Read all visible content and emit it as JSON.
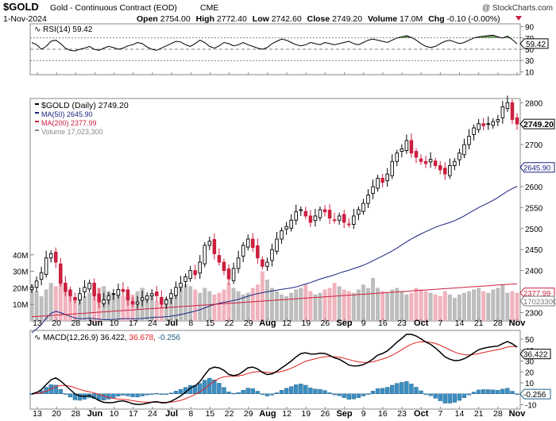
{
  "header": {
    "symbol": "$GOLD",
    "name": "Gold - Continuous Contract (EOD)",
    "exchange": "CME",
    "watermark": "@ StockCharts.com",
    "date": "1-Nov-2024",
    "open_label": "Open",
    "open": "2754.00",
    "high_label": "High",
    "high": "2772.40",
    "low_label": "Low",
    "low": "2742.60",
    "close_label": "Close",
    "close": "2749.20",
    "volume_label": "Volume",
    "volume": "17.0M",
    "chg_label": "Chg",
    "chg": "-0.10 (-0.00%)"
  },
  "colors": {
    "up": "#000000",
    "down": "#cc1f3f",
    "ma50": "#1a237e",
    "ma200": "#cc1f3f",
    "vol_up": "#bdbdbd",
    "vol_down": "#f0b3bd",
    "hist": "#3b8ec2",
    "rsi_fill": "#5c8a4c"
  },
  "chart_data": [
    {
      "type": "line",
      "title": "RSI(14) 59.42",
      "name": "RSI(14)",
      "last": "59.42",
      "ylim": [
        5,
        95
      ],
      "ticks": [
        "90",
        "70",
        "50",
        "30",
        "10"
      ],
      "reference_lines": [
        70,
        50,
        30
      ],
      "x_labels": [
        "13",
        "20",
        "28",
        "Jun",
        "10",
        "17",
        "24",
        "Jul",
        "8",
        "15",
        "22",
        "29",
        "Aug",
        "12",
        "19",
        "26",
        "Sep",
        "9",
        "16",
        "23",
        "Oct",
        "7",
        "14",
        "21",
        "28",
        "Nov"
      ],
      "values": [
        62,
        58,
        50,
        55,
        64,
        66,
        60,
        52,
        48,
        47,
        50,
        52,
        55,
        50,
        48,
        52,
        55,
        53,
        50,
        52,
        56,
        58,
        62,
        60,
        54,
        50,
        48,
        52,
        56,
        60,
        64,
        63,
        58,
        55,
        60,
        66,
        62,
        55,
        52,
        56,
        62,
        60,
        56,
        58,
        62,
        58,
        55,
        52,
        50,
        53,
        60,
        64,
        68,
        66,
        62,
        58,
        56,
        58,
        62,
        60,
        58,
        62,
        60,
        58,
        60,
        62,
        64,
        60,
        58,
        62,
        66,
        68,
        66,
        64,
        62,
        66,
        70,
        72,
        74,
        71,
        66,
        60,
        55,
        53,
        55,
        60,
        64,
        66,
        63,
        60,
        62,
        66,
        70,
        72,
        73,
        74,
        75,
        72,
        70,
        73,
        67,
        59.42
      ]
    },
    {
      "type": "candlestick",
      "title": "$GOLD (Daily) 2749.20",
      "series_label": "$GOLD (Daily)",
      "last": "2749.20",
      "ylim": [
        2280,
        2810
      ],
      "ticks": [
        "2800",
        "2750",
        "2700",
        "2650",
        "2600",
        "2550",
        "2500",
        "2450",
        "2400",
        "2350",
        "2300"
      ],
      "volume_ticks": [
        "40M",
        "30M",
        "20M",
        "10M"
      ],
      "volume_max": 50,
      "legend": [
        {
          "label": "$GOLD (Daily) 2749.20",
          "color": "#000000"
        },
        {
          "label": "MA(50) 2645.90",
          "color": "#1a237e"
        },
        {
          "label": "MA(200) 2377.99",
          "color": "#cc1f3f"
        },
        {
          "label": "Volume 17,023,300",
          "color": "#888888"
        }
      ],
      "tags": [
        {
          "label": "2749.20",
          "value": 2749.2,
          "color": "#000000"
        },
        {
          "label": "2645.90",
          "value": 2645.9,
          "color": "#1a237e"
        },
        {
          "label": "2377.99",
          "value": 2350,
          "color": "#cc1f3f"
        },
        {
          "label": "17023300",
          "value": 2338,
          "color": "#777777"
        }
      ],
      "x_labels": [
        "13",
        "20",
        "28",
        "Jun",
        "10",
        "17",
        "24",
        "Jul",
        "8",
        "15",
        "22",
        "29",
        "Aug",
        "12",
        "19",
        "26",
        "Sep",
        "9",
        "16",
        "23",
        "Oct",
        "7",
        "14",
        "21",
        "28",
        "Nov"
      ],
      "close": [
        2360,
        2375,
        2395,
        2430,
        2440,
        2420,
        2370,
        2350,
        2340,
        2330,
        2345,
        2360,
        2370,
        2340,
        2325,
        2330,
        2340,
        2345,
        2355,
        2350,
        2330,
        2320,
        2325,
        2335,
        2340,
        2345,
        2340,
        2320,
        2330,
        2345,
        2360,
        2370,
        2385,
        2400,
        2390,
        2420,
        2460,
        2470,
        2440,
        2420,
        2400,
        2380,
        2405,
        2430,
        2460,
        2475,
        2455,
        2430,
        2410,
        2420,
        2450,
        2475,
        2495,
        2505,
        2520,
        2540,
        2545,
        2530,
        2515,
        2530,
        2545,
        2540,
        2525,
        2520,
        2530,
        2515,
        2510,
        2530,
        2545,
        2560,
        2580,
        2600,
        2620,
        2610,
        2630,
        2660,
        2680,
        2690,
        2710,
        2680,
        2670,
        2660,
        2655,
        2665,
        2650,
        2640,
        2630,
        2650,
        2660,
        2680,
        2700,
        2720,
        2740,
        2750,
        2745,
        2750,
        2755,
        2760,
        2790,
        2800,
        2760,
        2749.2
      ],
      "volume": [
        22,
        18,
        15,
        19,
        23,
        21,
        25,
        20,
        18,
        14,
        16,
        15,
        17,
        19,
        20,
        21,
        18,
        16,
        17,
        15,
        14,
        16,
        18,
        20,
        15,
        16,
        12,
        13,
        14,
        16,
        18,
        20,
        22,
        21,
        19,
        17,
        20,
        18,
        16,
        17,
        19,
        23,
        20,
        18,
        16,
        17,
        20,
        22,
        30,
        25,
        20,
        18,
        16,
        15,
        17,
        19,
        20,
        22,
        18,
        16,
        17,
        19,
        20,
        23,
        21,
        19,
        18,
        17,
        19,
        22,
        20,
        26,
        20,
        18,
        17,
        19,
        20,
        18,
        16,
        17,
        20,
        19,
        18,
        17,
        16,
        15,
        18,
        16,
        14,
        16,
        17,
        18,
        19,
        20,
        18,
        17,
        19,
        20,
        22,
        17,
        18,
        17
      ]
    },
    {
      "type": "line",
      "title": "MACD(12,26,9) 36.422, 36.678, -0.256",
      "name": "MACD(12,26,9)",
      "macd_value": "36.422",
      "signal_value": "36.678",
      "hist_value": "-0.256",
      "ylim": [
        -14,
        58
      ],
      "ticks": [
        "50",
        "40",
        "30",
        "20",
        "10",
        "0",
        "-10"
      ],
      "tags": [
        {
          "label": "36.422",
          "value": 36.422
        },
        {
          "label": "-0.256",
          "value": -0.256
        }
      ],
      "x_labels": [
        "13",
        "20",
        "28",
        "Jun",
        "10",
        "17",
        "24",
        "Jul",
        "8",
        "15",
        "22",
        "29",
        "Aug",
        "12",
        "19",
        "26",
        "Sep",
        "9",
        "16",
        "23",
        "Oct",
        "7",
        "14",
        "21",
        "28",
        "Nov"
      ]
    }
  ]
}
